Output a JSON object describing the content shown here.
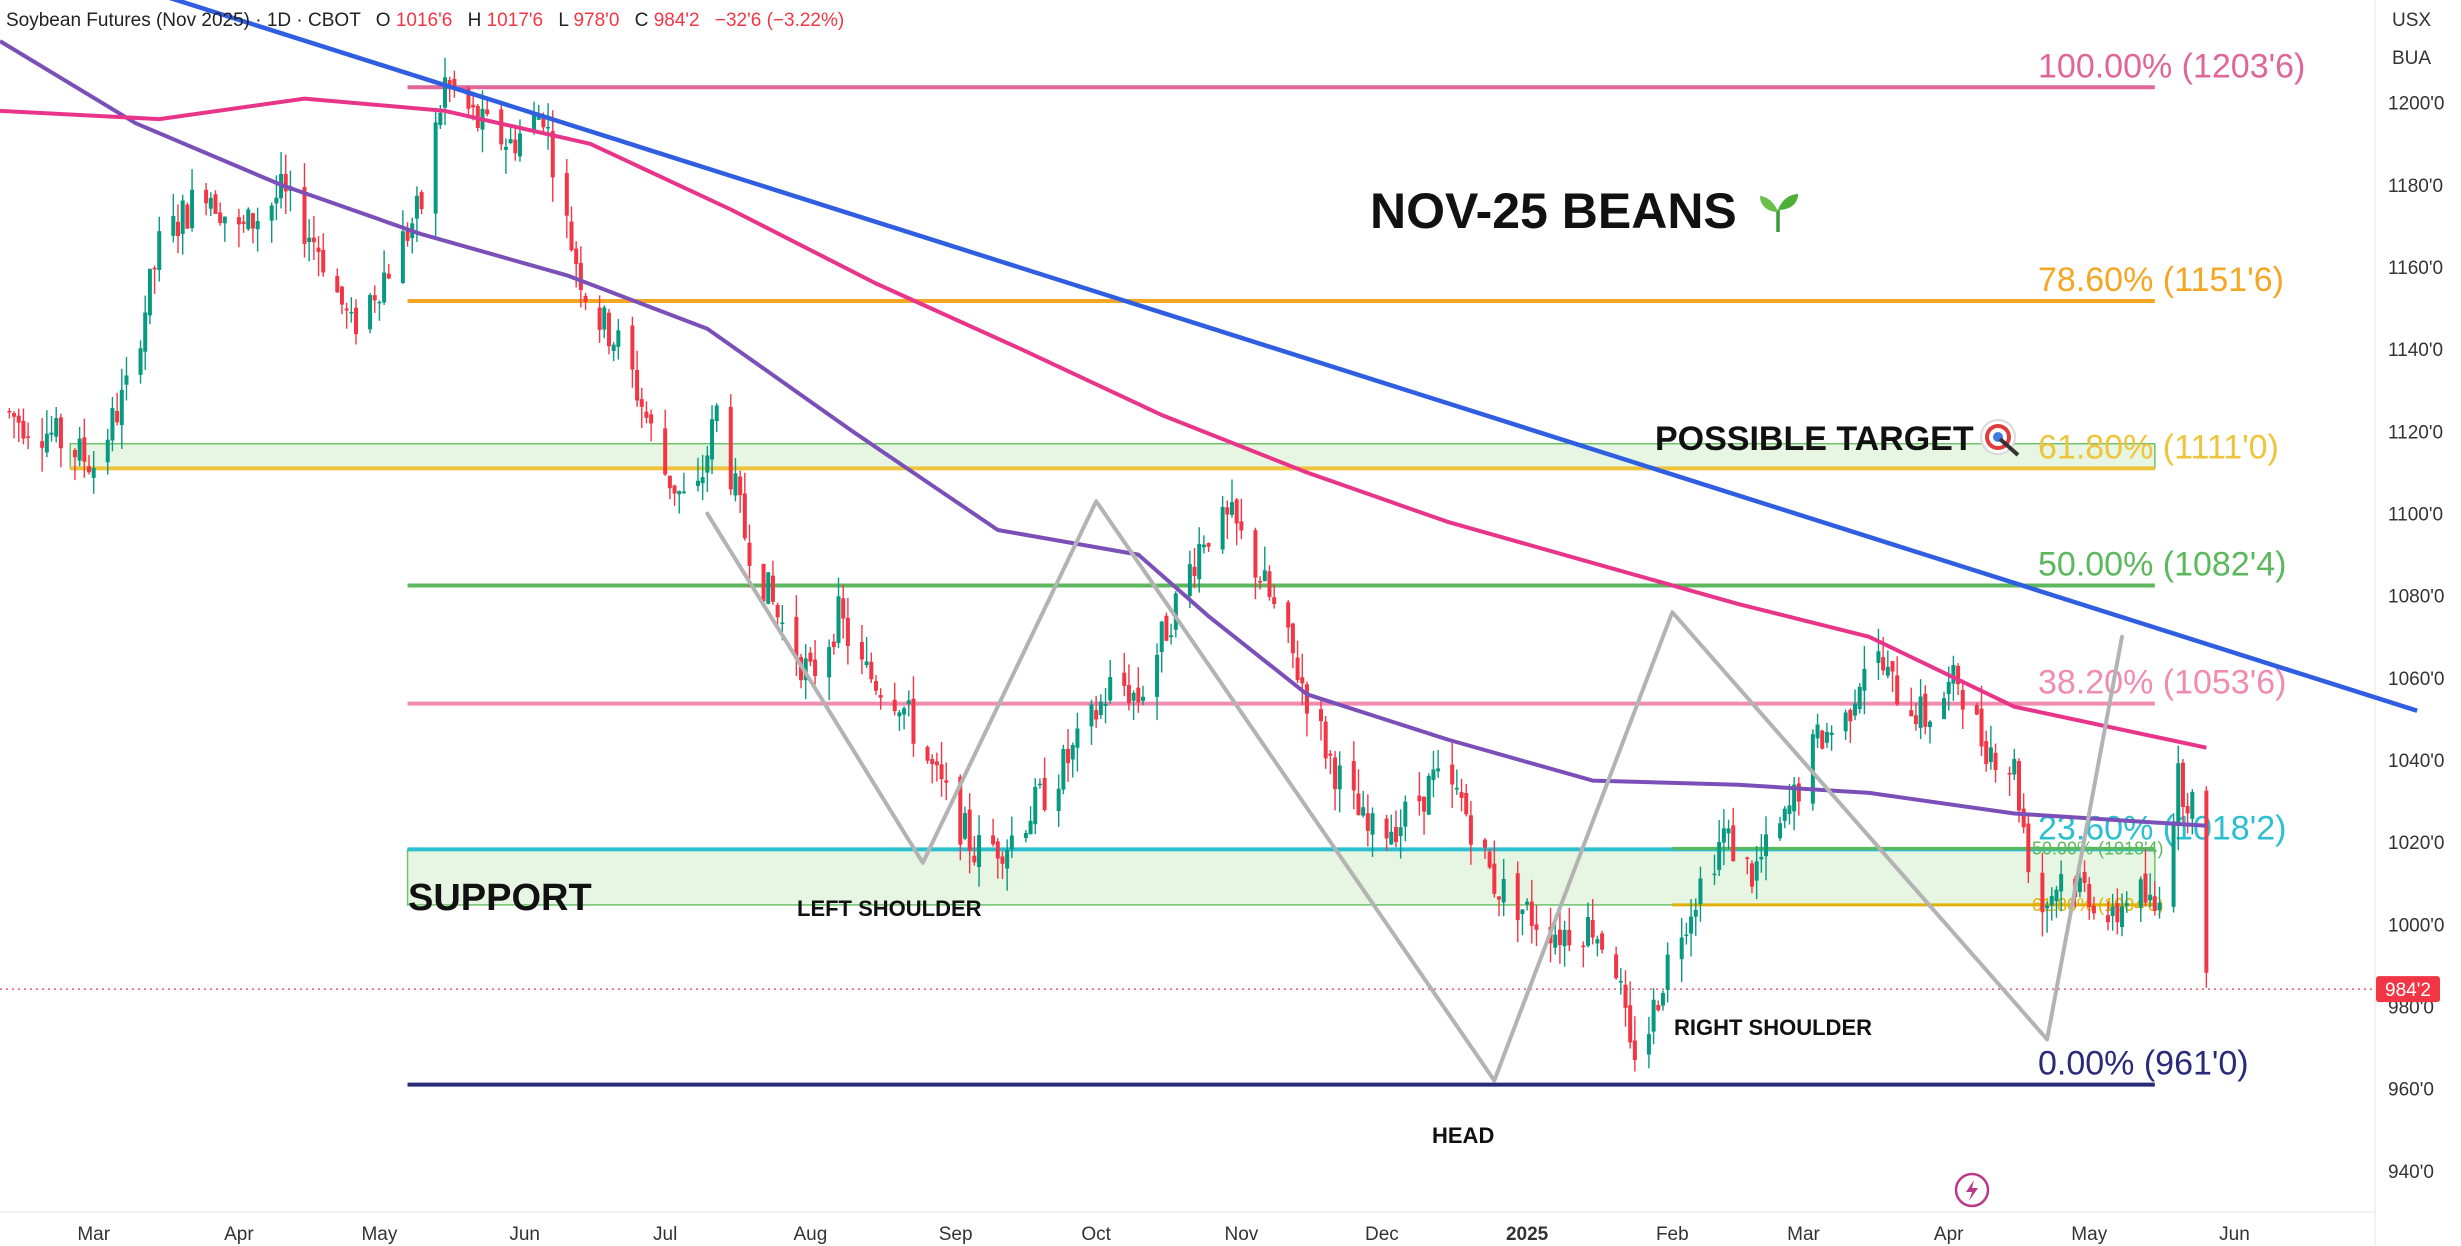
{
  "header": {
    "symbol": "Soybean Futures (Nov 2025) · 1D · CBOT",
    "o_label": "O",
    "o_value": "1016'6",
    "h_label": "H",
    "h_value": "1017'6",
    "l_label": "L",
    "l_value": "978'0",
    "c_label": "C",
    "c_value": "984'2",
    "change": "−32'6 (−3.22%)",
    "up_color": "#089981",
    "down_color": "#f23645"
  },
  "axis_units": {
    "currency": "USX",
    "unit": "BUA"
  },
  "icons": {
    "seedling": "seedling-icon",
    "target": "target-icon",
    "flash": "flash-icon"
  },
  "chart_data": {
    "type": "candlestick",
    "title": "NOV-25 BEANS",
    "ylim": [
      930,
      1225
    ],
    "y_ticks": [
      940,
      960,
      980,
      1000,
      1020,
      1040,
      1060,
      1080,
      1100,
      1120,
      1140,
      1160,
      1180,
      1200
    ],
    "y_tick_labels": [
      "940'0",
      "960'0",
      "980'0",
      "1000'0",
      "1020'0",
      "1040'0",
      "1060'0",
      "1080'0",
      "1100'0",
      "1120'0",
      "1140'0",
      "1160'0",
      "1180'0",
      "1200'0"
    ],
    "x_labels": [
      {
        "label": "Mar",
        "date": "2024-03-01"
      },
      {
        "label": "Apr",
        "date": "2024-04-01"
      },
      {
        "label": "May",
        "date": "2024-05-01"
      },
      {
        "label": "Jun",
        "date": "2024-06-01"
      },
      {
        "label": "Jul",
        "date": "2024-07-01"
      },
      {
        "label": "Aug",
        "date": "2024-08-01"
      },
      {
        "label": "Sep",
        "date": "2024-09-01"
      },
      {
        "label": "Oct",
        "date": "2024-10-01"
      },
      {
        "label": "Nov",
        "date": "2024-11-01"
      },
      {
        "label": "Dec",
        "date": "2024-12-01"
      },
      {
        "label": "2025",
        "date": "2025-01-01"
      },
      {
        "label": "Feb",
        "date": "2025-02-01"
      },
      {
        "label": "Mar",
        "date": "2025-03-01"
      },
      {
        "label": "Apr",
        "date": "2025-04-01"
      },
      {
        "label": "May",
        "date": "2025-05-01"
      },
      {
        "label": "Jun",
        "date": "2025-06-01"
      }
    ],
    "x_range": [
      "2024-02-10",
      "2025-07-01"
    ],
    "last_price": 984.25,
    "last_price_label": "984'2",
    "price_path": [
      [
        "2024-02-10",
        1125
      ],
      [
        "2024-02-20",
        1120
      ],
      [
        "2024-03-01",
        1112
      ],
      [
        "2024-03-08",
        1130
      ],
      [
        "2024-03-15",
        1165
      ],
      [
        "2024-03-25",
        1180
      ],
      [
        "2024-04-01",
        1168
      ],
      [
        "2024-04-10",
        1178
      ],
      [
        "2024-04-18",
        1165
      ],
      [
        "2024-04-25",
        1145
      ],
      [
        "2024-05-03",
        1160
      ],
      [
        "2024-05-10",
        1175
      ],
      [
        "2024-05-15",
        1205
      ],
      [
        "2024-05-22",
        1195
      ],
      [
        "2024-05-29",
        1190
      ],
      [
        "2024-06-05",
        1198
      ],
      [
        "2024-06-10",
        1170
      ],
      [
        "2024-06-15",
        1150
      ],
      [
        "2024-06-22",
        1140
      ],
      [
        "2024-07-01",
        1110
      ],
      [
        "2024-07-07",
        1100
      ],
      [
        "2024-07-12",
        1125
      ],
      [
        "2024-07-18",
        1095
      ],
      [
        "2024-07-25",
        1075
      ],
      [
        "2024-08-01",
        1060
      ],
      [
        "2024-08-07",
        1075
      ],
      [
        "2024-08-12",
        1062
      ],
      [
        "2024-08-20",
        1055
      ],
      [
        "2024-08-28",
        1035
      ],
      [
        "2024-09-05",
        1018
      ],
      [
        "2024-09-12",
        1020
      ],
      [
        "2024-09-20",
        1032
      ],
      [
        "2024-09-28",
        1045
      ],
      [
        "2024-10-05",
        1060
      ],
      [
        "2024-10-10",
        1055
      ],
      [
        "2024-10-18",
        1078
      ],
      [
        "2024-10-24",
        1095
      ],
      [
        "2024-10-30",
        1098
      ],
      [
        "2024-11-05",
        1085
      ],
      [
        "2024-11-12",
        1065
      ],
      [
        "2024-11-20",
        1040
      ],
      [
        "2024-11-28",
        1022
      ],
      [
        "2024-12-05",
        1025
      ],
      [
        "2024-12-12",
        1035
      ],
      [
        "2024-12-18",
        1030
      ],
      [
        "2024-12-25",
        1010
      ],
      [
        "2025-01-02",
        1002
      ],
      [
        "2025-01-08",
        998
      ],
      [
        "2025-01-15",
        1000
      ],
      [
        "2025-01-20",
        990
      ],
      [
        "2025-01-23",
        968
      ],
      [
        "2025-01-27",
        975
      ],
      [
        "2025-02-01",
        995
      ],
      [
        "2025-02-07",
        1010
      ],
      [
        "2025-02-12",
        1022
      ],
      [
        "2025-02-18",
        1012
      ],
      [
        "2025-02-25",
        1025
      ],
      [
        "2025-03-04",
        1045
      ],
      [
        "2025-03-10",
        1050
      ],
      [
        "2025-03-15",
        1068
      ],
      [
        "2025-03-20",
        1058
      ],
      [
        "2025-03-27",
        1050
      ],
      [
        "2025-04-03",
        1060
      ],
      [
        "2025-04-08",
        1045
      ],
      [
        "2025-04-15",
        1038
      ],
      [
        "2025-04-20",
        1002
      ],
      [
        "2025-04-25",
        1012
      ],
      [
        "2025-05-01",
        1008
      ],
      [
        "2025-05-06",
        1000
      ],
      [
        "2025-05-10",
        1010
      ],
      [
        "2025-05-15",
        1003
      ],
      [
        "2025-05-20",
        1035
      ],
      [
        "2025-05-23",
        1030
      ],
      [
        "2025-05-26",
        984
      ]
    ],
    "ma_200": [
      [
        "2024-02-10",
        1198
      ],
      [
        "2024-03-15",
        1196
      ],
      [
        "2024-04-15",
        1201
      ],
      [
        "2024-05-15",
        1198
      ],
      [
        "2024-06-15",
        1190
      ],
      [
        "2024-07-15",
        1174
      ],
      [
        "2024-08-15",
        1156
      ],
      [
        "2024-09-15",
        1140
      ],
      [
        "2024-10-15",
        1124
      ],
      [
        "2024-11-15",
        1110
      ],
      [
        "2024-12-15",
        1098
      ],
      [
        "2025-01-15",
        1088
      ],
      [
        "2025-02-15",
        1078
      ],
      [
        "2025-03-15",
        1070
      ],
      [
        "2025-04-15",
        1053
      ],
      [
        "2025-05-26",
        1043
      ]
    ],
    "ma_100": [
      [
        "2024-02-10",
        1215
      ],
      [
        "2024-03-10",
        1195
      ],
      [
        "2024-04-10",
        1180
      ],
      [
        "2024-05-10",
        1168
      ],
      [
        "2024-06-10",
        1158
      ],
      [
        "2024-07-10",
        1145
      ],
      [
        "2024-08-10",
        1120
      ],
      [
        "2024-09-10",
        1096
      ],
      [
        "2024-10-10",
        1090
      ],
      [
        "2024-10-25",
        1075
      ],
      [
        "2024-11-15",
        1056
      ],
      [
        "2024-12-15",
        1045
      ],
      [
        "2025-01-15",
        1035
      ],
      [
        "2025-02-15",
        1034
      ],
      [
        "2025-03-15",
        1032
      ],
      [
        "2025-04-15",
        1027
      ],
      [
        "2025-05-26",
        1024
      ]
    ],
    "trendline": {
      "start": [
        "2024-02-20",
        1235
      ],
      "end": [
        "2025-07-10",
        1052
      ]
    },
    "levels": [
      {
        "name": "100.00%",
        "value": 1203.75,
        "label": "100.00% (1203'6)",
        "color": "#e0669a"
      },
      {
        "name": "78.60%",
        "value": 1151.75,
        "label": "78.60% (1151'6)",
        "color": "#f5a623"
      },
      {
        "name": "61.80%",
        "value": 1111.0,
        "label": "61.80% (1111'0)",
        "color": "#f0c33c"
      },
      {
        "name": "50.00%",
        "value": 1082.5,
        "label": "50.00% (1082'4)",
        "color": "#5cb85c"
      },
      {
        "name": "38.20%",
        "value": 1053.75,
        "label": "38.20% (1053'6)",
        "color": "#f08cb0"
      },
      {
        "name": "23.60%",
        "value": 1018.25,
        "label": "23.60% (1018'2)",
        "color": "#2bbfd0"
      },
      {
        "name": "0.00%",
        "value": 961.0,
        "label": "0.00% (961'0)",
        "color": "#2a2a7a"
      }
    ],
    "small_levels": [
      {
        "label": "50.00% (1018'4)",
        "value": 1018.5,
        "color": "#5cb85c"
      },
      {
        "label": "61.80% (1004'6)",
        "value": 1004.75,
        "color": "#e0b000"
      }
    ],
    "zones": [
      {
        "name": "upper-zone",
        "start": "2024-02-25",
        "end": "2025-05-15",
        "low": 1111,
        "high": 1117
      },
      {
        "name": "support-zone",
        "start": "2024-05-07",
        "end": "2025-05-15",
        "low": 1004.75,
        "high": 1018.25
      }
    ],
    "pattern_path": [
      [
        "2024-07-10",
        1100
      ],
      [
        "2024-08-25",
        1015
      ],
      [
        "2024-10-01",
        1103
      ],
      [
        "2024-12-25",
        962
      ],
      [
        "2025-02-01",
        1076
      ],
      [
        "2025-04-22",
        972
      ],
      [
        "2025-05-08",
        1070
      ]
    ],
    "annotations": {
      "title": "NOV-25 BEANS",
      "possible_target": "POSSIBLE TARGET",
      "support": "SUPPORT",
      "left_shoulder": "LEFT SHOULDER",
      "head": "HEAD",
      "right_shoulder": "RIGHT SHOULDER"
    },
    "colors": {
      "trendline": "#2f5fe0",
      "ma_200": "#e8358a",
      "ma_100": "#7b4fb8",
      "pattern": "#b3b3b3",
      "candle_up": "#089981",
      "candle_down": "#f23645",
      "zone_fill": "#e6f6e2",
      "zone_stroke": "#6cc36c"
    }
  }
}
